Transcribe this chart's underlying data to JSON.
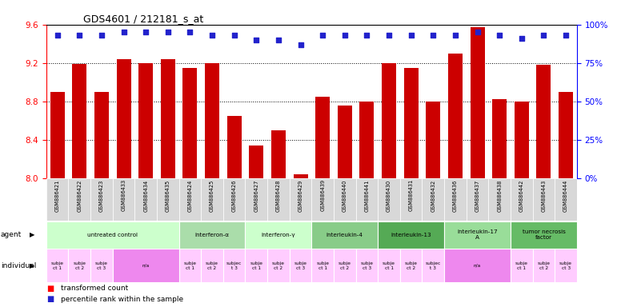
{
  "title": "GDS4601 / 212181_s_at",
  "samples": [
    "GSM886421",
    "GSM886422",
    "GSM886423",
    "GSM886433",
    "GSM886434",
    "GSM886435",
    "GSM886424",
    "GSM886425",
    "GSM886426",
    "GSM886427",
    "GSM886428",
    "GSM886429",
    "GSM886439",
    "GSM886440",
    "GSM886441",
    "GSM886430",
    "GSM886431",
    "GSM886432",
    "GSM886436",
    "GSM886437",
    "GSM886438",
    "GSM886442",
    "GSM886443",
    "GSM886444"
  ],
  "bar_values": [
    8.9,
    9.19,
    8.9,
    9.24,
    9.2,
    9.24,
    9.15,
    9.2,
    8.65,
    8.34,
    8.5,
    8.04,
    8.85,
    8.76,
    8.8,
    9.2,
    9.15,
    8.8,
    9.3,
    9.57,
    8.82,
    8.8,
    9.18,
    8.9
  ],
  "dot_values": [
    93,
    93,
    93,
    95,
    95,
    95,
    95,
    93,
    93,
    90,
    90,
    87,
    93,
    93,
    93,
    93,
    93,
    93,
    93,
    95,
    93,
    91,
    93,
    93
  ],
  "ylim_left": [
    8.0,
    9.6
  ],
  "ylim_right": [
    0,
    100
  ],
  "yticks_left": [
    8.0,
    8.4,
    8.8,
    9.2,
    9.6
  ],
  "yticks_right": [
    0,
    25,
    50,
    75,
    100
  ],
  "bar_color": "#cc0000",
  "dot_color": "#2222cc",
  "agent_groups": [
    {
      "label": "untreated control",
      "start": 0,
      "end": 6,
      "color": "#ccffcc"
    },
    {
      "label": "interferon-α",
      "start": 6,
      "end": 9,
      "color": "#aaddaa"
    },
    {
      "label": "interferon-γ",
      "start": 9,
      "end": 12,
      "color": "#ccffcc"
    },
    {
      "label": "interleukin-4",
      "start": 12,
      "end": 15,
      "color": "#88cc88"
    },
    {
      "label": "interleukin-13",
      "start": 15,
      "end": 18,
      "color": "#55aa55"
    },
    {
      "label": "interleukin-17\nA",
      "start": 18,
      "end": 21,
      "color": "#99dd99"
    },
    {
      "label": "tumor necrosis\nfactor",
      "start": 21,
      "end": 24,
      "color": "#66bb66"
    }
  ],
  "individual_groups": [
    {
      "label": "subje\nct 1",
      "start": 0,
      "end": 1,
      "color": "#ffccff"
    },
    {
      "label": "subje\nct 2",
      "start": 1,
      "end": 2,
      "color": "#ffccff"
    },
    {
      "label": "subje\nct 3",
      "start": 2,
      "end": 3,
      "color": "#ffccff"
    },
    {
      "label": "n/a",
      "start": 3,
      "end": 6,
      "color": "#ee88ee"
    },
    {
      "label": "subje\nct 1",
      "start": 6,
      "end": 7,
      "color": "#ffccff"
    },
    {
      "label": "subje\nct 2",
      "start": 7,
      "end": 8,
      "color": "#ffccff"
    },
    {
      "label": "subjec\nt 3",
      "start": 8,
      "end": 9,
      "color": "#ffccff"
    },
    {
      "label": "subje\nct 1",
      "start": 9,
      "end": 10,
      "color": "#ffccff"
    },
    {
      "label": "subje\nct 2",
      "start": 10,
      "end": 11,
      "color": "#ffccff"
    },
    {
      "label": "subje\nct 3",
      "start": 11,
      "end": 12,
      "color": "#ffccff"
    },
    {
      "label": "subje\nct 1",
      "start": 12,
      "end": 13,
      "color": "#ffccff"
    },
    {
      "label": "subje\nct 2",
      "start": 13,
      "end": 14,
      "color": "#ffccff"
    },
    {
      "label": "subje\nct 3",
      "start": 14,
      "end": 15,
      "color": "#ffccff"
    },
    {
      "label": "subje\nct 1",
      "start": 15,
      "end": 16,
      "color": "#ffccff"
    },
    {
      "label": "subje\nct 2",
      "start": 16,
      "end": 17,
      "color": "#ffccff"
    },
    {
      "label": "subjec\nt 3",
      "start": 17,
      "end": 18,
      "color": "#ffccff"
    },
    {
      "label": "n/a",
      "start": 18,
      "end": 21,
      "color": "#ee88ee"
    },
    {
      "label": "subje\nct 1",
      "start": 21,
      "end": 22,
      "color": "#ffccff"
    },
    {
      "label": "subje\nct 2",
      "start": 22,
      "end": 23,
      "color": "#ffccff"
    },
    {
      "label": "subje\nct 3",
      "start": 23,
      "end": 24,
      "color": "#ffccff"
    }
  ],
  "background_color": "#ffffff"
}
